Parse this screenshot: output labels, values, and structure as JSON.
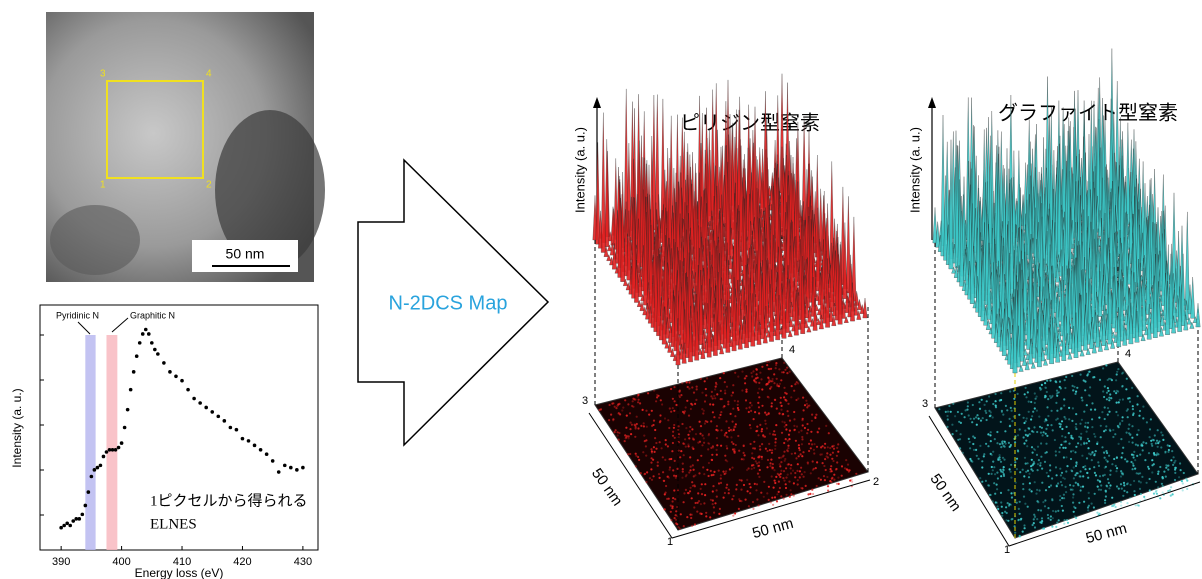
{
  "tem_image": {
    "scale_bar": "50 nm",
    "corners": [
      "1",
      "2",
      "3",
      "4"
    ]
  },
  "arrow_label": "N-2DCS Map",
  "maps": [
    {
      "title": "ピリジン型窒素",
      "axis_label": "Intensity (a. u.)",
      "side_labels": [
        "50 nm",
        "50 nm"
      ],
      "corners": [
        "1",
        "2",
        "3",
        "4"
      ],
      "color": "#e02020"
    },
    {
      "title": "グラファイト型窒素",
      "axis_label": "Intensity (a. u.)",
      "side_labels": [
        "50 nm",
        "50 nm"
      ],
      "corners": [
        "1",
        "3",
        "4"
      ],
      "color": "#3cc8c8"
    }
  ],
  "chart_data": {
    "type": "scatter",
    "xlabel": "Energy loss (eV)",
    "ylabel": "Intensity (a. u.)",
    "annotation": [
      "1ピクセルから得られる",
      "ELNES"
    ],
    "bands": [
      {
        "name": "Pyridinic N",
        "range": [
          394,
          395.7
        ],
        "color": "#b8b8f0"
      },
      {
        "name": "Graphitic N",
        "range": [
          397.5,
          399.3
        ],
        "color": "#f8b8c0"
      }
    ],
    "x": [
      390,
      390.5,
      391,
      391.5,
      392,
      392.5,
      393,
      393.5,
      394,
      394.5,
      395,
      395.5,
      396,
      396.5,
      397,
      397.5,
      398,
      398.5,
      399,
      399.5,
      400,
      400.5,
      401,
      401.5,
      402,
      402.5,
      403,
      403.5,
      404,
      404.5,
      405,
      405.5,
      406,
      407,
      408,
      409,
      410,
      411,
      412,
      413,
      414,
      415,
      416,
      417,
      418,
      419,
      420,
      421,
      422,
      423,
      424,
      425,
      426,
      427,
      428,
      429,
      430
    ],
    "values": [
      0.1,
      0.11,
      0.12,
      0.11,
      0.13,
      0.14,
      0.14,
      0.16,
      0.2,
      0.26,
      0.33,
      0.36,
      0.37,
      0.38,
      0.42,
      0.44,
      0.45,
      0.45,
      0.45,
      0.46,
      0.48,
      0.55,
      0.63,
      0.72,
      0.8,
      0.87,
      0.93,
      0.97,
      0.99,
      0.97,
      0.93,
      0.9,
      0.88,
      0.84,
      0.8,
      0.78,
      0.76,
      0.72,
      0.68,
      0.66,
      0.64,
      0.62,
      0.6,
      0.58,
      0.55,
      0.54,
      0.5,
      0.49,
      0.47,
      0.45,
      0.43,
      0.4,
      0.35,
      0.38,
      0.37,
      0.36,
      0.37
    ],
    "color": "#000000",
    "xlim": [
      386.5,
      432.5
    ],
    "ylim": [
      0,
      1.1
    ],
    "xticks": [
      390,
      400,
      410,
      420,
      430
    ]
  }
}
